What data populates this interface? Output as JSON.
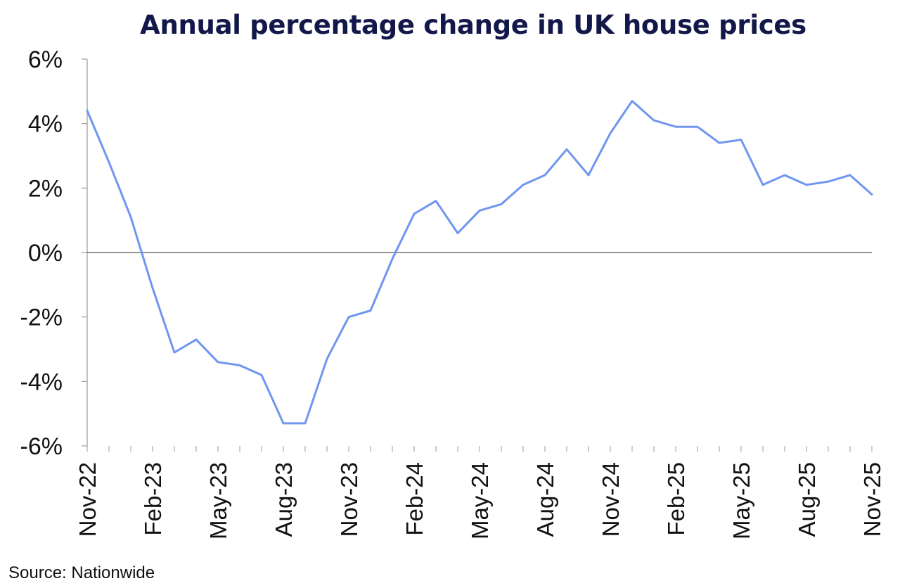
{
  "chart_data": {
    "type": "line",
    "title": "Annual percentage change in UK house prices",
    "source": "Source: Nationwide",
    "xlabel": "",
    "ylabel": "",
    "x_tick_labels": [
      "Nov-22",
      "Feb-23",
      "May-23",
      "Aug-23",
      "Nov-23",
      "Feb-24",
      "May-24",
      "Aug-24",
      "Nov-24",
      "Feb-25",
      "May-25",
      "Aug-25",
      "Nov-25"
    ],
    "y_tick_labels": [
      "6%",
      "4%",
      "2%",
      "0%",
      "-2%",
      "-4%",
      "-6%"
    ],
    "y_ticks": [
      6,
      4,
      2,
      0,
      -2,
      -4,
      -6
    ],
    "ylim": [
      -6,
      6
    ],
    "grid": false,
    "legend": "none",
    "line_color": "#6f96f0",
    "x": [
      "Nov-22",
      "Dec-22",
      "Jan-23",
      "Feb-23",
      "Mar-23",
      "Apr-23",
      "May-23",
      "Jun-23",
      "Jul-23",
      "Aug-23",
      "Sep-23",
      "Oct-23",
      "Nov-23",
      "Dec-23",
      "Jan-24",
      "Feb-24",
      "Mar-24",
      "Apr-24",
      "May-24",
      "Jun-24",
      "Jul-24",
      "Aug-24",
      "Sep-24",
      "Oct-24",
      "Nov-24",
      "Dec-24",
      "Jan-25",
      "Feb-25",
      "Mar-25",
      "Apr-25",
      "May-25",
      "Jun-25",
      "Jul-25",
      "Aug-25",
      "Sep-25",
      "Oct-25",
      "Nov-25"
    ],
    "series": [
      {
        "values": [
          4.4,
          2.8,
          1.1,
          -1.1,
          -3.1,
          -2.7,
          -3.4,
          -3.5,
          -3.8,
          -5.3,
          -5.3,
          -3.3,
          -2.0,
          -1.8,
          -0.2,
          1.2,
          1.6,
          0.6,
          1.3,
          1.5,
          2.1,
          2.4,
          3.2,
          2.4,
          3.7,
          4.7,
          4.1,
          3.9,
          3.9,
          3.4,
          3.5,
          2.1,
          2.4,
          2.1,
          2.2,
          2.4,
          1.8
        ]
      }
    ]
  }
}
